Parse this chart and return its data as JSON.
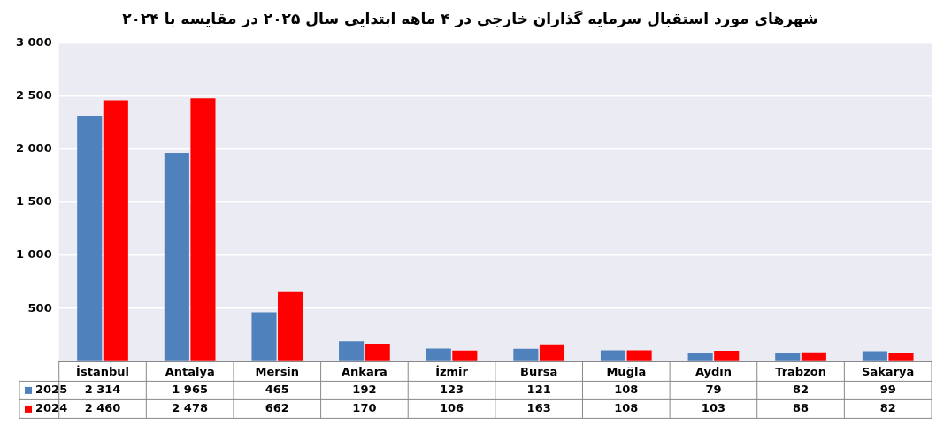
{
  "chart_data": {
    "type": "bar",
    "title": "شهرهای مورد استقبال سرمایه گذاران خارجی در ۴ ماهه ابتدایی سال ۲۰۲۵ در مقایسه با ۲۰۲۴",
    "categories": [
      "İstanbul",
      "Antalya",
      "Mersin",
      "Ankara",
      "İzmir",
      "Bursa",
      "Muğla",
      "Aydın",
      "Trabzon",
      "Sakarya"
    ],
    "series": [
      {
        "name": "2025",
        "color": "#4f81bd",
        "values": [
          2314,
          1965,
          465,
          192,
          123,
          121,
          108,
          79,
          82,
          99
        ]
      },
      {
        "name": "2024",
        "color": "#ff0000",
        "values": [
          2460,
          2478,
          662,
          170,
          106,
          163,
          108,
          103,
          88,
          82
        ]
      }
    ],
    "value_labels": [
      [
        "2 314",
        "1 965",
        "465",
        "192",
        "123",
        "121",
        "108",
        "79",
        "82",
        "99"
      ],
      [
        "2 460",
        "2 478",
        "662",
        "170",
        "106",
        "163",
        "108",
        "103",
        "88",
        "82"
      ]
    ],
    "ylim": [
      0,
      3000
    ],
    "yticks": [
      {
        "value": 0,
        "label": null
      },
      500,
      {
        "value": 1000,
        "label": "1 000"
      },
      {
        "value": 1500,
        "label": "1 500"
      },
      {
        "value": 2000,
        "label": "2 000"
      },
      {
        "value": 2500,
        "label": "2 500"
      },
      {
        "value": 3000,
        "label": "3 000"
      }
    ],
    "grid": "y",
    "legend": "bottom"
  }
}
